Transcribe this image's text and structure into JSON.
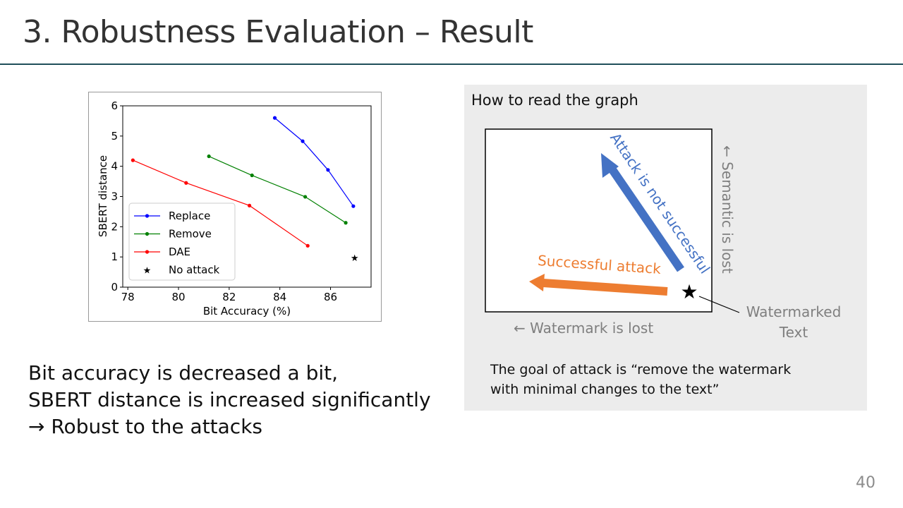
{
  "slide": {
    "title": "3. Robustness Evaluation – Result",
    "page_number": "40"
  },
  "conclusion": {
    "line1": "Bit accuracy is decreased a bit,",
    "line2": "SBERT distance is increased significantly",
    "line3": "→ Robust to the attacks"
  },
  "guide": {
    "heading": "How to read the graph",
    "attack_not_successful": "Attack is not successful",
    "successful_attack": "Successful attack",
    "semantic_lost": "← Semantic is lost",
    "watermark_lost": "← Watermark is lost",
    "watermarked_line1": "Watermarked",
    "watermarked_line2": "Text",
    "star": "★",
    "note_line1": "The goal of attack is “remove the watermark",
    "note_line2": "with minimal changes to the text”",
    "colors": {
      "blue": "#4472c4",
      "orange": "#ed7d31",
      "gray": "#7f7f7f"
    }
  },
  "chart_data": {
    "type": "line",
    "xlabel": "Bit Accuracy (%)",
    "ylabel": "SBERT distance",
    "xlim": [
      77.8,
      87.6
    ],
    "ylim": [
      0,
      6
    ],
    "xticks": [
      78,
      80,
      82,
      84,
      86
    ],
    "yticks": [
      0,
      1,
      2,
      3,
      4,
      5,
      6
    ],
    "legend_position": "lower-left",
    "grid": false,
    "series": [
      {
        "name": "Replace",
        "color": "#0000ff",
        "x": [
          83.8,
          84.9,
          85.9,
          86.9
        ],
        "y": [
          5.6,
          4.83,
          3.88,
          2.68
        ]
      },
      {
        "name": "Remove",
        "color": "#008000",
        "x": [
          81.2,
          82.9,
          85.0,
          86.6
        ],
        "y": [
          4.33,
          3.7,
          2.99,
          2.13
        ]
      },
      {
        "name": "DAE",
        "color": "#ff0000",
        "x": [
          78.2,
          80.3,
          82.8,
          85.1
        ],
        "y": [
          4.2,
          3.45,
          2.7,
          1.37
        ]
      }
    ],
    "markers": [
      {
        "name": "No attack",
        "symbol": "★",
        "x": 86.95,
        "y": 0.98
      }
    ]
  }
}
